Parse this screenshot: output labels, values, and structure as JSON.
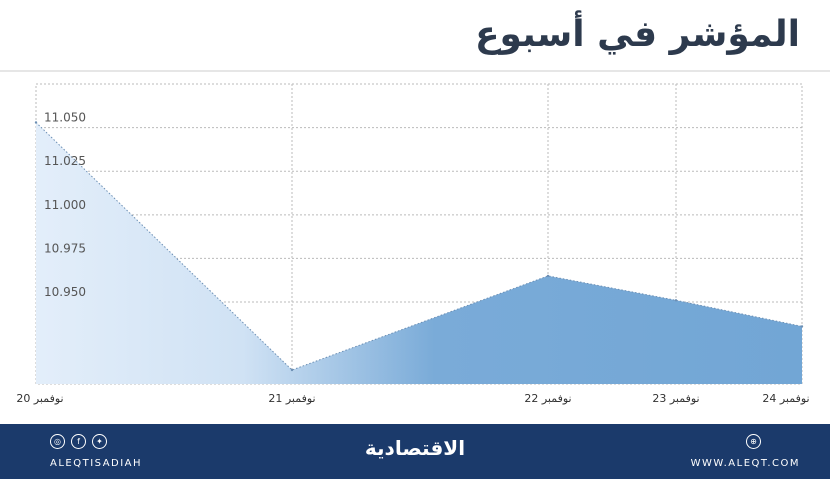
{
  "title": "المؤشر في أسبوع",
  "footer": {
    "social_handle": "ALEQTISADIAH",
    "logo": "الاقتصادية",
    "website": "WWW.ALEQT.COM",
    "social_icons": [
      "instagram-icon",
      "facebook-icon",
      "twitter-icon"
    ],
    "web_icon": "web-icon"
  },
  "colors": {
    "fill_start": "#e3eefa",
    "fill_end": "#72a6d5",
    "footer_bg": "#1b3a6b",
    "grid": "#bbbbbb"
  },
  "chart_data": {
    "type": "area",
    "title": "المؤشر في أسبوع",
    "xlabel": "",
    "ylabel": "",
    "x": [
      "20 نوفمبر",
      "21 نوفمبر",
      "22 نوفمبر",
      "23 نوفمبر",
      "24 نوفمبر"
    ],
    "values": [
      11.053,
      10.911,
      10.965,
      10.951,
      10.936
    ],
    "yticks": [
      "10.950",
      "10.975",
      "11.000",
      "11.025",
      "11.050"
    ],
    "ylim": [
      10.903,
      11.075
    ],
    "grid": true
  }
}
